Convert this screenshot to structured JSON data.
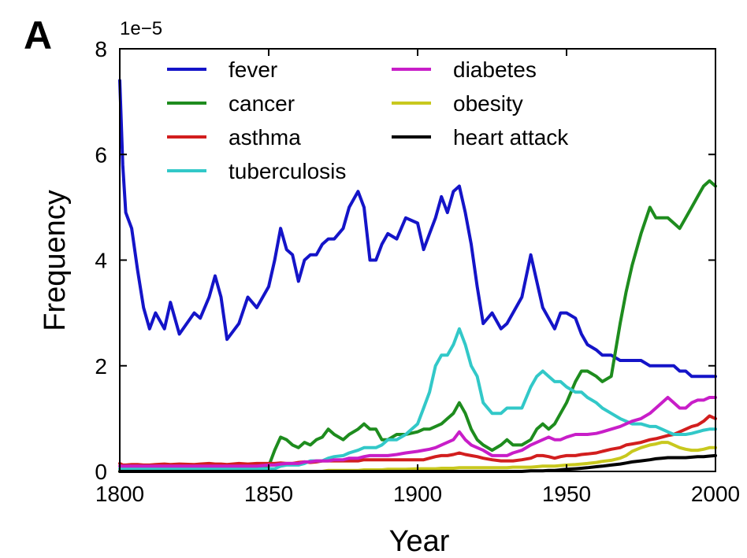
{
  "panel_label": "A",
  "chart_data": {
    "type": "line",
    "title": "",
    "xlabel": "Year",
    "ylabel": "Frequency",
    "y_scale_note": "1e−5",
    "xlim": [
      1800,
      2000
    ],
    "ylim": [
      0,
      8
    ],
    "x_ticks": [
      "1800",
      "1850",
      "1900",
      "1950",
      "2000"
    ],
    "y_ticks": [
      "0",
      "2",
      "4",
      "6",
      "8"
    ],
    "grid": false,
    "legend_position": "top-left",
    "x": [
      1800,
      1801,
      1802,
      1804,
      1806,
      1808,
      1810,
      1812,
      1815,
      1817,
      1820,
      1825,
      1827,
      1830,
      1832,
      1834,
      1836,
      1840,
      1843,
      1846,
      1850,
      1852,
      1854,
      1856,
      1858,
      1860,
      1862,
      1864,
      1866,
      1868,
      1870,
      1872,
      1875,
      1877,
      1880,
      1882,
      1884,
      1886,
      1888,
      1890,
      1893,
      1896,
      1900,
      1902,
      1904,
      1906,
      1908,
      1910,
      1912,
      1914,
      1916,
      1918,
      1920,
      1922,
      1925,
      1928,
      1930,
      1932,
      1935,
      1938,
      1940,
      1942,
      1944,
      1946,
      1948,
      1950,
      1953,
      1955,
      1957,
      1960,
      1962,
      1965,
      1968,
      1970,
      1972,
      1975,
      1978,
      1980,
      1982,
      1984,
      1986,
      1988,
      1990,
      1992,
      1994,
      1996,
      1998,
      2000
    ],
    "series": [
      {
        "name": "fever",
        "color": "#1414c8",
        "values": [
          7.4,
          5.8,
          4.9,
          4.6,
          3.8,
          3.1,
          2.7,
          3.0,
          2.7,
          3.2,
          2.6,
          3.0,
          2.9,
          3.3,
          3.7,
          3.3,
          2.5,
          2.8,
          3.3,
          3.1,
          3.5,
          4.0,
          4.6,
          4.2,
          4.1,
          3.6,
          4.0,
          4.1,
          4.1,
          4.3,
          4.4,
          4.4,
          4.6,
          5.0,
          5.3,
          5.0,
          4.0,
          4.0,
          4.3,
          4.5,
          4.4,
          4.8,
          4.7,
          4.2,
          4.5,
          4.8,
          5.2,
          4.9,
          5.3,
          5.4,
          4.9,
          4.3,
          3.5,
          2.8,
          3.0,
          2.7,
          2.8,
          3.0,
          3.3,
          4.1,
          3.6,
          3.1,
          2.9,
          2.7,
          3.0,
          3.0,
          2.9,
          2.6,
          2.4,
          2.3,
          2.2,
          2.2,
          2.1,
          2.1,
          2.1,
          2.1,
          2.0,
          2.0,
          2.0,
          2.0,
          2.0,
          1.9,
          1.9,
          1.8,
          1.8,
          1.8,
          1.8,
          1.8
        ]
      },
      {
        "name": "cancer",
        "color": "#1e8c1e",
        "values": [
          0.05,
          0.05,
          0.05,
          0.05,
          0.05,
          0.05,
          0.05,
          0.05,
          0.05,
          0.05,
          0.05,
          0.05,
          0.05,
          0.05,
          0.05,
          0.05,
          0.05,
          0.05,
          0.05,
          0.05,
          0.1,
          0.4,
          0.65,
          0.6,
          0.5,
          0.45,
          0.55,
          0.5,
          0.6,
          0.65,
          0.8,
          0.7,
          0.6,
          0.7,
          0.8,
          0.9,
          0.8,
          0.8,
          0.6,
          0.6,
          0.7,
          0.7,
          0.75,
          0.8,
          0.8,
          0.85,
          0.9,
          1.0,
          1.1,
          1.3,
          1.1,
          0.8,
          0.6,
          0.5,
          0.4,
          0.5,
          0.6,
          0.5,
          0.5,
          0.6,
          0.8,
          0.9,
          0.8,
          0.9,
          1.1,
          1.3,
          1.7,
          1.9,
          1.9,
          1.8,
          1.7,
          1.8,
          2.8,
          3.4,
          3.9,
          4.5,
          5.0,
          4.8,
          4.8,
          4.8,
          4.7,
          4.6,
          4.8,
          5.0,
          5.2,
          5.4,
          5.5,
          5.4
        ]
      },
      {
        "name": "asthma",
        "color": "#d21e1e",
        "values": [
          0.15,
          0.12,
          0.12,
          0.13,
          0.13,
          0.12,
          0.12,
          0.13,
          0.14,
          0.13,
          0.14,
          0.13,
          0.14,
          0.15,
          0.14,
          0.14,
          0.13,
          0.15,
          0.14,
          0.15,
          0.15,
          0.15,
          0.16,
          0.15,
          0.15,
          0.17,
          0.18,
          0.17,
          0.18,
          0.2,
          0.2,
          0.2,
          0.2,
          0.2,
          0.2,
          0.22,
          0.22,
          0.22,
          0.22,
          0.22,
          0.22,
          0.22,
          0.22,
          0.22,
          0.25,
          0.28,
          0.3,
          0.3,
          0.32,
          0.35,
          0.32,
          0.3,
          0.28,
          0.25,
          0.22,
          0.2,
          0.2,
          0.2,
          0.22,
          0.25,
          0.3,
          0.3,
          0.28,
          0.25,
          0.28,
          0.3,
          0.3,
          0.32,
          0.33,
          0.35,
          0.38,
          0.42,
          0.45,
          0.5,
          0.52,
          0.55,
          0.6,
          0.62,
          0.65,
          0.68,
          0.7,
          0.75,
          0.8,
          0.85,
          0.88,
          0.95,
          1.05,
          1.0
        ]
      },
      {
        "name": "tuberculosis",
        "color": "#32c8c8",
        "values": [
          0.05,
          0.05,
          0.05,
          0.05,
          0.05,
          0.05,
          0.05,
          0.05,
          0.05,
          0.05,
          0.05,
          0.05,
          0.05,
          0.05,
          0.05,
          0.05,
          0.05,
          0.05,
          0.05,
          0.05,
          0.05,
          0.05,
          0.1,
          0.12,
          0.12,
          0.12,
          0.15,
          0.2,
          0.2,
          0.2,
          0.25,
          0.28,
          0.3,
          0.35,
          0.4,
          0.45,
          0.45,
          0.45,
          0.5,
          0.6,
          0.6,
          0.7,
          0.9,
          1.2,
          1.5,
          2.0,
          2.2,
          2.2,
          2.4,
          2.7,
          2.4,
          2.0,
          1.8,
          1.3,
          1.1,
          1.1,
          1.2,
          1.2,
          1.2,
          1.6,
          1.8,
          1.9,
          1.8,
          1.7,
          1.7,
          1.6,
          1.5,
          1.5,
          1.4,
          1.3,
          1.2,
          1.1,
          1.0,
          0.95,
          0.9,
          0.9,
          0.85,
          0.85,
          0.8,
          0.75,
          0.7,
          0.7,
          0.7,
          0.72,
          0.75,
          0.78,
          0.8,
          0.8
        ]
      },
      {
        "name": "diabetes",
        "color": "#c81ec8",
        "values": [
          0.1,
          0.1,
          0.1,
          0.1,
          0.1,
          0.1,
          0.1,
          0.1,
          0.1,
          0.1,
          0.1,
          0.1,
          0.1,
          0.1,
          0.1,
          0.1,
          0.1,
          0.1,
          0.1,
          0.1,
          0.12,
          0.12,
          0.14,
          0.15,
          0.15,
          0.15,
          0.18,
          0.18,
          0.2,
          0.2,
          0.2,
          0.22,
          0.22,
          0.25,
          0.25,
          0.28,
          0.3,
          0.3,
          0.3,
          0.3,
          0.32,
          0.35,
          0.38,
          0.4,
          0.42,
          0.45,
          0.5,
          0.55,
          0.6,
          0.75,
          0.6,
          0.5,
          0.45,
          0.4,
          0.3,
          0.3,
          0.3,
          0.35,
          0.4,
          0.5,
          0.55,
          0.6,
          0.65,
          0.6,
          0.6,
          0.65,
          0.7,
          0.7,
          0.7,
          0.72,
          0.75,
          0.8,
          0.85,
          0.9,
          0.95,
          1.0,
          1.1,
          1.2,
          1.3,
          1.4,
          1.3,
          1.2,
          1.2,
          1.3,
          1.35,
          1.35,
          1.4,
          1.4
        ]
      },
      {
        "name": "obesity",
        "color": "#c8c81e",
        "values": [
          0.0,
          0.0,
          0.0,
          0.0,
          0.0,
          0.0,
          0.0,
          0.0,
          0.0,
          0.0,
          0.0,
          0.0,
          0.0,
          0.0,
          0.0,
          0.0,
          0.0,
          0.0,
          0.0,
          0.0,
          0.0,
          0.0,
          0.0,
          0.0,
          0.0,
          0.0,
          0.0,
          0.0,
          0.0,
          0.0,
          0.02,
          0.02,
          0.02,
          0.02,
          0.02,
          0.03,
          0.03,
          0.03,
          0.03,
          0.04,
          0.04,
          0.04,
          0.05,
          0.05,
          0.05,
          0.05,
          0.06,
          0.06,
          0.06,
          0.07,
          0.07,
          0.07,
          0.07,
          0.07,
          0.07,
          0.07,
          0.07,
          0.08,
          0.08,
          0.08,
          0.09,
          0.1,
          0.1,
          0.1,
          0.11,
          0.12,
          0.13,
          0.14,
          0.15,
          0.17,
          0.19,
          0.21,
          0.25,
          0.3,
          0.38,
          0.45,
          0.5,
          0.52,
          0.55,
          0.55,
          0.5,
          0.45,
          0.42,
          0.4,
          0.4,
          0.42,
          0.45,
          0.45
        ]
      },
      {
        "name": "heart attack",
        "color": "#000000",
        "values": [
          0.0,
          0.0,
          0.0,
          0.0,
          0.0,
          0.0,
          0.0,
          0.0,
          0.0,
          0.0,
          0.0,
          0.0,
          0.0,
          0.0,
          0.0,
          0.0,
          0.0,
          0.0,
          0.0,
          0.0,
          0.0,
          0.0,
          0.0,
          0.0,
          0.0,
          0.0,
          0.0,
          0.0,
          0.0,
          0.0,
          0.0,
          0.0,
          0.0,
          0.0,
          0.0,
          0.0,
          0.0,
          0.0,
          0.0,
          0.0,
          0.0,
          0.0,
          0.0,
          0.0,
          0.0,
          0.0,
          0.0,
          0.0,
          0.0,
          0.0,
          0.0,
          0.0,
          0.0,
          0.0,
          0.0,
          0.0,
          0.0,
          0.0,
          0.0,
          0.01,
          0.01,
          0.01,
          0.02,
          0.02,
          0.03,
          0.04,
          0.05,
          0.06,
          0.07,
          0.09,
          0.1,
          0.12,
          0.14,
          0.16,
          0.18,
          0.2,
          0.22,
          0.24,
          0.25,
          0.26,
          0.26,
          0.26,
          0.26,
          0.27,
          0.28,
          0.28,
          0.29,
          0.3
        ]
      }
    ]
  }
}
